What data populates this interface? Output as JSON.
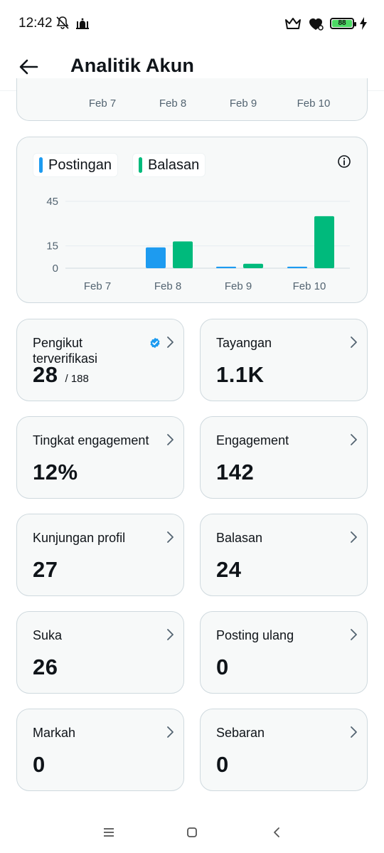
{
  "status_bar": {
    "time": "12:42",
    "battery_level": "88",
    "left_icons": [
      "bell-off-icon",
      "mosque-icon"
    ],
    "right_icons": [
      "crown-icon",
      "heart-shield-icon",
      "battery-icon",
      "charging-icon"
    ]
  },
  "header": {
    "title": "Analitik Akun",
    "back_icon": "arrow-left-icon"
  },
  "top_card": {
    "x_labels": [
      "Feb 7",
      "Feb 8",
      "Feb 9",
      "Feb 10"
    ]
  },
  "legend": {
    "posts_label": "Postingan",
    "replies_label": "Balasan"
  },
  "colors": {
    "posts": "#1d9bf0",
    "replies": "#00ba7c"
  },
  "chart_data": {
    "type": "bar",
    "categories": [
      "Feb 7",
      "Feb 8",
      "Feb 9",
      "Feb 10"
    ],
    "series": [
      {
        "name": "Postingan",
        "values": [
          0,
          14,
          1,
          1
        ]
      },
      {
        "name": "Balasan",
        "values": [
          0,
          18,
          3,
          35
        ]
      }
    ],
    "y_ticks": [
      0,
      15,
      45
    ],
    "ylim": [
      0,
      45
    ],
    "grid": true,
    "legend_position": "top-left"
  },
  "stats": [
    {
      "label": "Pengikut terverifikasi",
      "value": "28",
      "sub": "/ 188"
    },
    {
      "label": "Tayangan",
      "value": "1.1K"
    },
    {
      "label": "Tingkat engagement",
      "value": "12%"
    },
    {
      "label": "Engagement",
      "value": "142"
    },
    {
      "label": "Kunjungan profil",
      "value": "27"
    },
    {
      "label": "Balasan",
      "value": "24"
    },
    {
      "label": "Suka",
      "value": "26"
    },
    {
      "label": "Posting ulang",
      "value": "0"
    },
    {
      "label": "Markah",
      "value": "0"
    },
    {
      "label": "Sebaran",
      "value": "0"
    }
  ],
  "nav": {
    "icons": [
      "menu-icon",
      "home-square-icon",
      "back-chevron-icon"
    ]
  }
}
